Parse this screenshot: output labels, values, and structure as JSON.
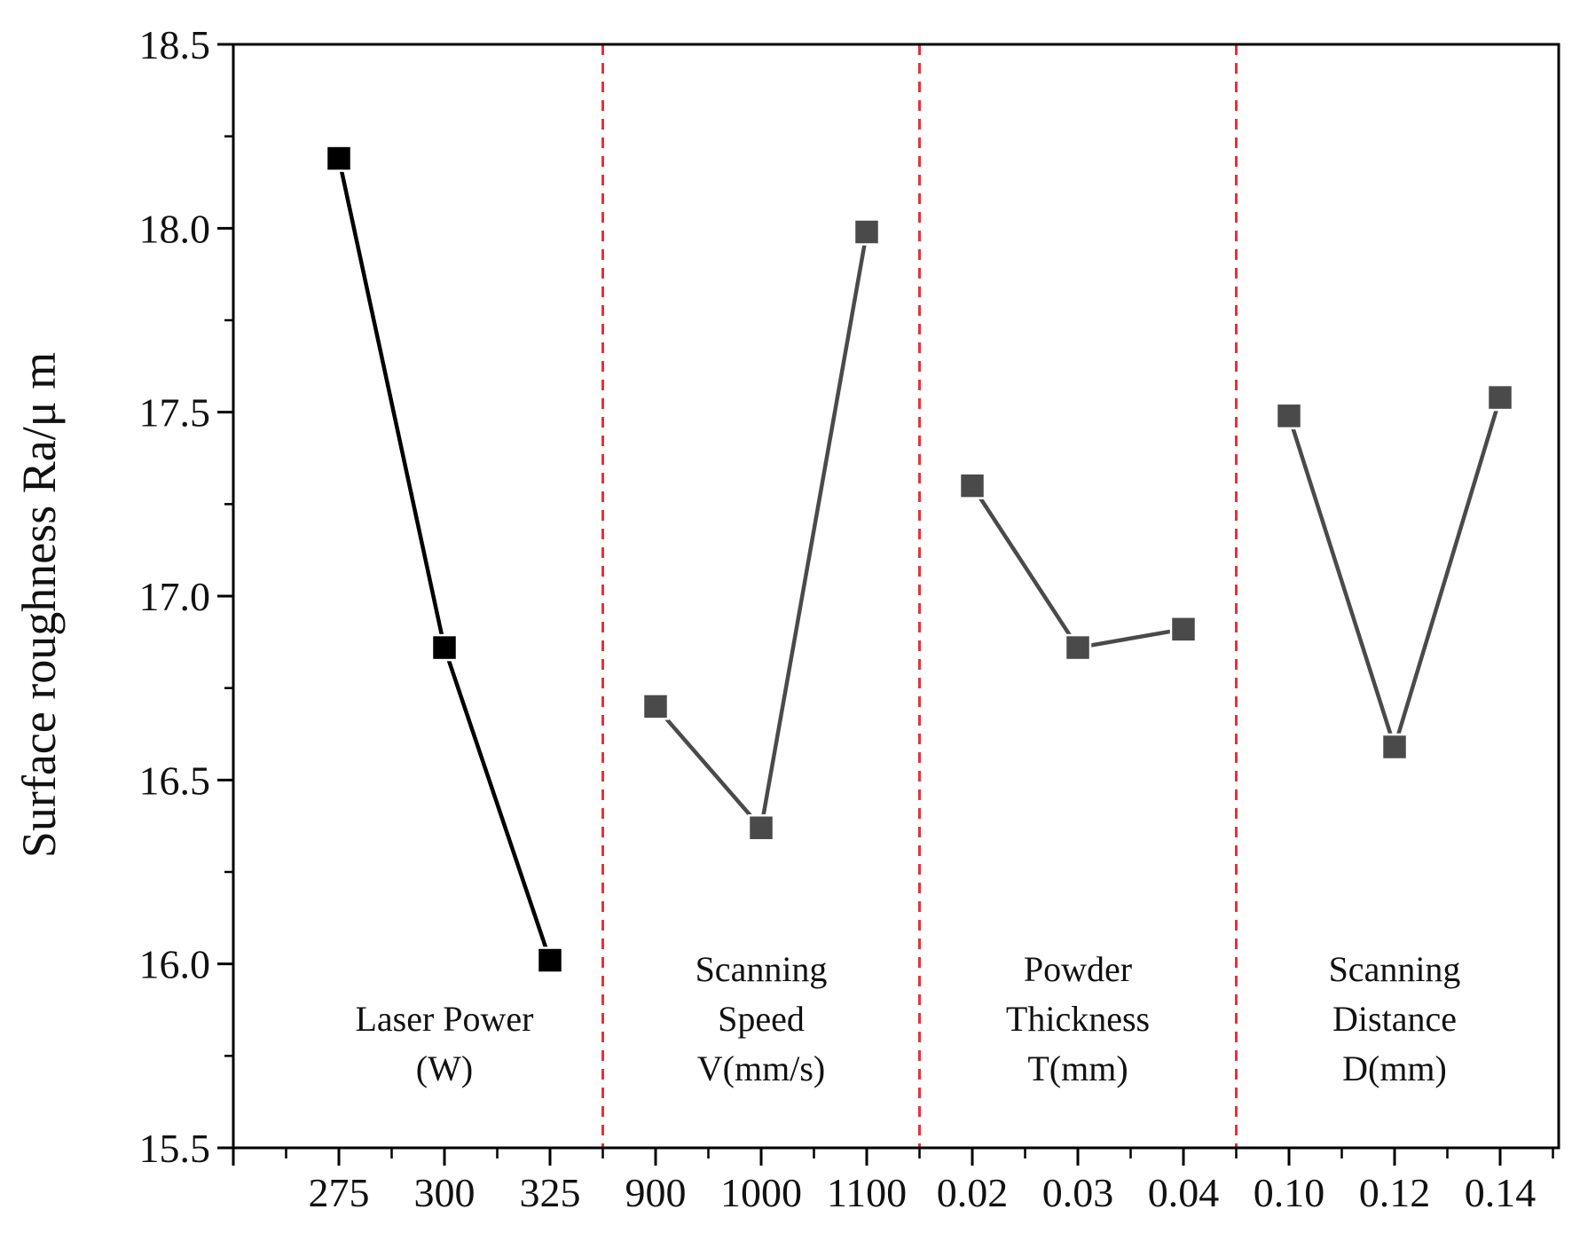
{
  "chart_data": {
    "type": "line",
    "title": "",
    "ylabel": "Surface roughness Ra/μ m",
    "xlabel": "",
    "ylim": [
      15.5,
      18.5
    ],
    "y_ticks": [
      "15.5",
      "16.0",
      "16.5",
      "17.0",
      "17.5",
      "18.0",
      "18.5"
    ],
    "y_minor_step": 0.25,
    "grid": false,
    "colors": {
      "first_series": "#000000",
      "other_series": "#4a4a4a",
      "separator": "#e8313a",
      "axis": "#000000"
    },
    "groups": [
      {
        "name": "Laser Power",
        "label_lines": [
          "Laser Power",
          "(W)"
        ],
        "categories": [
          "275",
          "300",
          "325"
        ],
        "values": [
          18.19,
          16.86,
          16.01
        ]
      },
      {
        "name": "Scanning Speed",
        "label_lines": [
          "Scanning",
          "Speed",
          "V(mm/s)"
        ],
        "categories": [
          "900",
          "1000",
          "1100"
        ],
        "values": [
          16.7,
          16.37,
          17.99
        ]
      },
      {
        "name": "Powder Thickness",
        "label_lines": [
          "Powder",
          "Thickness",
          "T(mm)"
        ],
        "categories": [
          "0.02",
          "0.03",
          "0.04"
        ],
        "values": [
          17.3,
          16.86,
          16.91
        ]
      },
      {
        "name": "Scanning Distance",
        "label_lines": [
          "Scanning",
          "Distance",
          "D(mm)"
        ],
        "categories": [
          "0.10",
          "0.12",
          "0.14"
        ],
        "values": [
          17.49,
          16.59,
          17.54
        ]
      }
    ]
  }
}
